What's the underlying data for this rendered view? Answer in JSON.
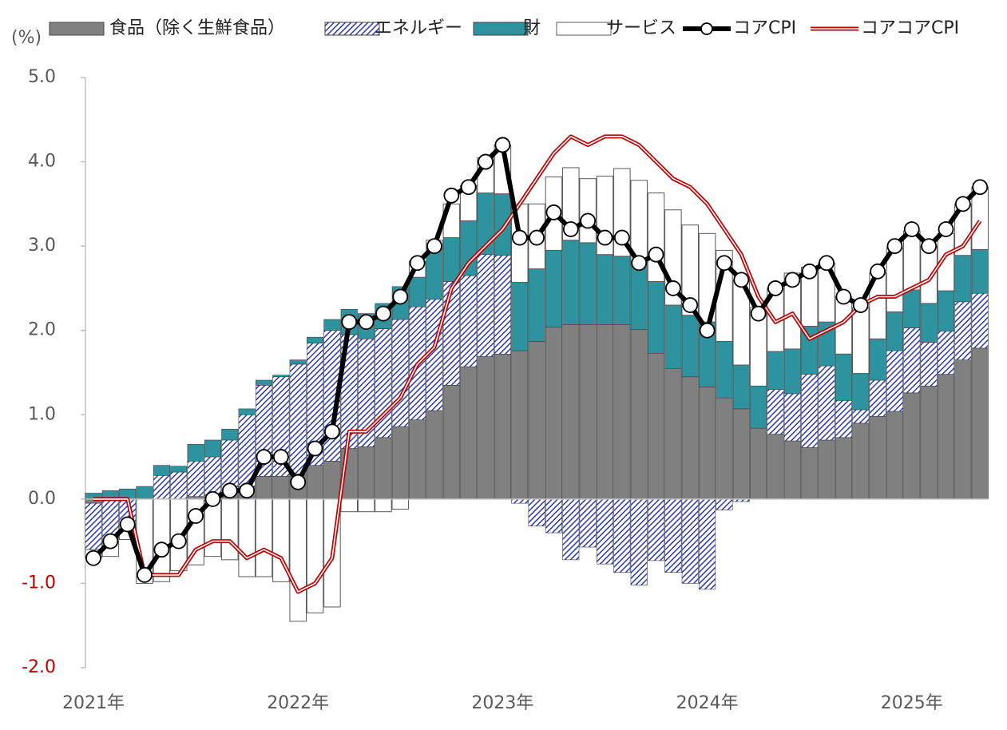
{
  "chart_data": {
    "type": "bar",
    "stacked": true,
    "y_unit_label": "(%)",
    "categories": [
      "2021年",
      null,
      null,
      null,
      null,
      null,
      null,
      null,
      null,
      null,
      null,
      null,
      "2022年",
      null,
      null,
      null,
      null,
      null,
      null,
      null,
      null,
      null,
      null,
      null,
      "2023年",
      null,
      null,
      null,
      null,
      null,
      null,
      null,
      null,
      null,
      null,
      null,
      "2024年",
      null,
      null,
      null,
      null,
      null,
      null,
      null,
      null,
      null,
      null,
      null,
      "2025年",
      null,
      null,
      null,
      null
    ],
    "ylim": [
      -2,
      5
    ],
    "yticks": [
      {
        "value": -2,
        "label": "-2.0"
      },
      {
        "value": -1,
        "label": "-1.0"
      },
      {
        "value": 0,
        "label": "0.0"
      },
      {
        "value": 1,
        "label": "1.0"
      },
      {
        "value": 2,
        "label": "2.0"
      },
      {
        "value": 3,
        "label": "3.0"
      },
      {
        "value": 4,
        "label": "4.0"
      },
      {
        "value": 5,
        "label": "5.0"
      }
    ],
    "negative_tick_color": "#c00000",
    "series": [
      {
        "name": "食品（除く生鮮食品）",
        "type": "bar",
        "color": "#808080",
        "values": [
          -0.05,
          0,
          0,
          0,
          0,
          0,
          0.03,
          0.05,
          0.08,
          0.15,
          0.27,
          0.27,
          0.3,
          0.4,
          0.45,
          0.6,
          0.62,
          0.73,
          0.86,
          0.94,
          1.05,
          1.35,
          1.57,
          1.69,
          1.72,
          1.76,
          1.87,
          2.04,
          2.07,
          2.07,
          2.07,
          2.07,
          2.01,
          1.73,
          1.55,
          1.45,
          1.33,
          1.2,
          1.07,
          0.84,
          0.77,
          0.69,
          0.61,
          0.7,
          0.73,
          0.9,
          0.98,
          1.04,
          1.26,
          1.34,
          1.48,
          1.65,
          1.79
        ]
      },
      {
        "name": "エネルギー",
        "type": "bar",
        "color": "#2838b8",
        "pattern": "hatch",
        "values": [
          -0.55,
          -0.5,
          -0.38,
          0,
          0.28,
          0.32,
          0.42,
          0.45,
          0.62,
          0.85,
          1.08,
          1.18,
          1.3,
          1.45,
          1.55,
          1.35,
          1.28,
          1.29,
          1.27,
          1.34,
          1.32,
          1.23,
          1.08,
          1.21,
          1.17,
          -0.05,
          -0.32,
          -0.4,
          -0.72,
          -0.57,
          -0.77,
          -0.87,
          -1.02,
          -0.73,
          -0.87,
          -1.0,
          -1.07,
          -0.13,
          -0.03,
          0,
          0.53,
          0.56,
          0.87,
          0.88,
          0.44,
          0.16,
          0.43,
          0.72,
          0.77,
          0.52,
          0.51,
          0.69,
          0.65
        ]
      },
      {
        "name": "財",
        "type": "bar",
        "color": "#2e939e",
        "values": [
          0.07,
          0.1,
          0.12,
          0.15,
          0.12,
          0.07,
          0.2,
          0.2,
          0.13,
          0.07,
          0.06,
          0.02,
          0.05,
          0.07,
          0.13,
          0.3,
          0.3,
          0.3,
          0.39,
          0.35,
          0.6,
          0.52,
          0.65,
          0.73,
          0.73,
          0.81,
          0.86,
          0.91,
          1.0,
          0.97,
          0.83,
          0.81,
          0.77,
          0.85,
          0.75,
          0.73,
          0.77,
          0.67,
          0.52,
          0.5,
          0.45,
          0.53,
          0.57,
          0.52,
          0.55,
          0.43,
          0.49,
          0.46,
          0.45,
          0.46,
          0.48,
          0.55,
          0.52
        ]
      },
      {
        "name": "サービス",
        "type": "bar",
        "color": "#ffffff",
        "values": [
          -0.1,
          -0.18,
          -0.1,
          -1.0,
          -0.98,
          -0.85,
          -0.78,
          -0.68,
          -0.72,
          -0.92,
          -0.92,
          -0.98,
          -1.45,
          -1.35,
          -1.28,
          -0.15,
          -0.15,
          -0.15,
          -0.12,
          0.19,
          0.1,
          0.4,
          0.42,
          0.42,
          0.58,
          0.93,
          0.77,
          0.87,
          0.86,
          0.76,
          0.93,
          1.04,
          1.0,
          1.05,
          1.13,
          1.07,
          1.05,
          1.08,
          1.01,
          0.93,
          0.75,
          0.9,
          0.7,
          0.7,
          0.68,
          0.78,
          0.78,
          0.76,
          0.7,
          0.68,
          0.68,
          0.61,
          0.74
        ]
      },
      {
        "name": "コアCPI",
        "type": "line",
        "color": "#000000",
        "markers": true,
        "values": [
          -0.7,
          -0.5,
          -0.3,
          -0.9,
          -0.6,
          -0.5,
          -0.2,
          0,
          0.1,
          0.1,
          0.5,
          0.5,
          0.2,
          0.6,
          0.8,
          2.1,
          2.1,
          2.2,
          2.4,
          2.8,
          3.0,
          3.6,
          3.7,
          4.0,
          4.2,
          3.1,
          3.1,
          3.4,
          3.2,
          3.3,
          3.1,
          3.1,
          2.8,
          2.9,
          2.5,
          2.3,
          2.0,
          2.8,
          2.6,
          2.2,
          2.5,
          2.6,
          2.7,
          2.8,
          2.4,
          2.3,
          2.7,
          3.0,
          3.2,
          3.0,
          3.2,
          3.5,
          3.7
        ]
      },
      {
        "name": "コアコアCPI",
        "type": "line",
        "color": "#c00000",
        "double": true,
        "values": [
          0,
          0,
          0,
          -0.9,
          -0.9,
          -0.9,
          -0.6,
          -0.5,
          -0.5,
          -0.7,
          -0.6,
          -0.7,
          -1.1,
          -1.0,
          -0.7,
          0.8,
          0.8,
          1.0,
          1.2,
          1.6,
          1.8,
          2.5,
          2.8,
          3.0,
          3.2,
          3.5,
          3.8,
          4.1,
          4.3,
          4.2,
          4.3,
          4.3,
          4.2,
          4.0,
          3.8,
          3.7,
          3.5,
          3.2,
          2.9,
          2.4,
          2.1,
          2.2,
          1.9,
          2.0,
          2.1,
          2.3,
          2.4,
          2.4,
          2.5,
          2.6,
          2.9,
          3.0,
          3.3
        ]
      }
    ]
  }
}
